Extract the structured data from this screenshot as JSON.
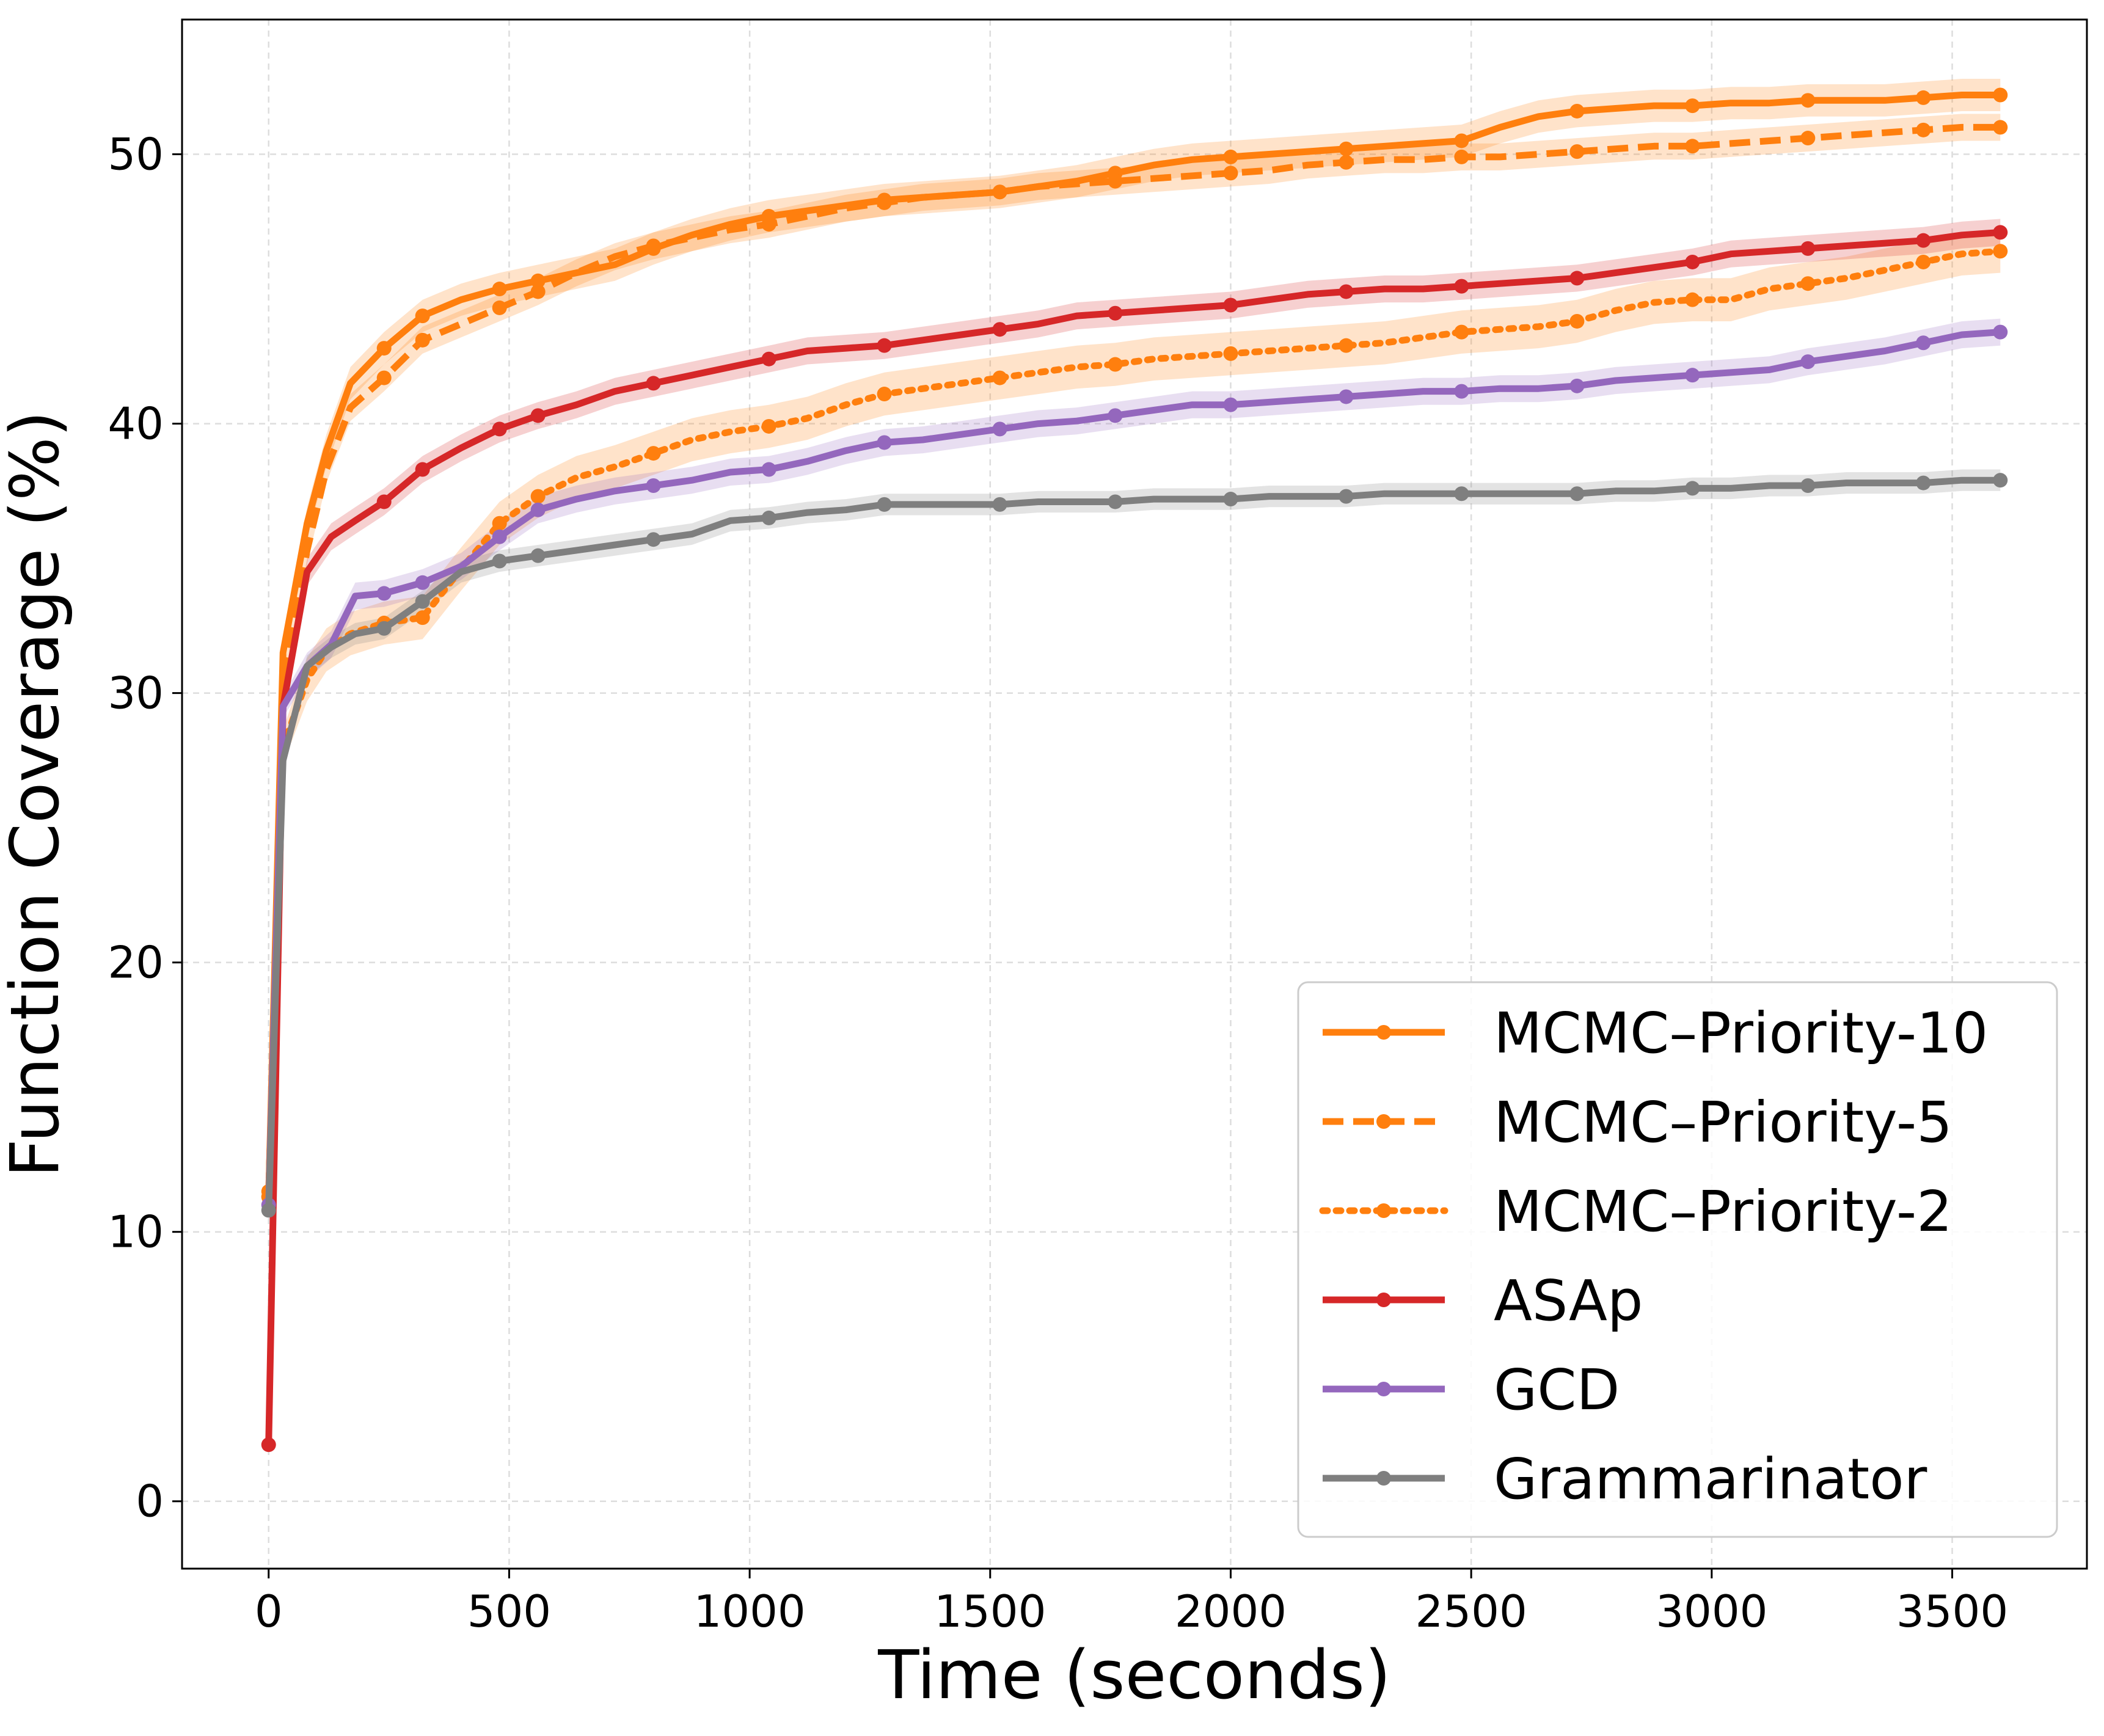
{
  "chart_data": {
    "type": "line",
    "title": "",
    "xlabel": "Time (seconds)",
    "ylabel": "Function Coverage (%)",
    "xlim": [
      -180,
      3780
    ],
    "ylim": [
      -2.5,
      55
    ],
    "xticks": [
      0,
      500,
      1000,
      1500,
      2000,
      2500,
      3000,
      3500
    ],
    "yticks": [
      0,
      10,
      20,
      30,
      40,
      50
    ],
    "grid": true,
    "legend_position": "lower-right",
    "series": [
      {
        "name": "MCMC–Priority-10",
        "color": "#ff7f0e",
        "style": "solid",
        "band": 0.6,
        "x": [
          0,
          30,
          80,
          120,
          170,
          240,
          320,
          400,
          480,
          560,
          640,
          720,
          800,
          880,
          960,
          1040,
          1120,
          1200,
          1280,
          1360,
          1440,
          1520,
          1600,
          1680,
          1760,
          1840,
          1920,
          2000,
          2080,
          2160,
          2240,
          2320,
          2400,
          2480,
          2560,
          2640,
          2720,
          2800,
          2880,
          2960,
          3040,
          3120,
          3200,
          3280,
          3360,
          3440,
          3520,
          3600
        ],
        "y": [
          11.3,
          31.5,
          36.3,
          39.0,
          41.5,
          42.8,
          44.0,
          44.6,
          45.0,
          45.3,
          45.6,
          45.9,
          46.5,
          47.0,
          47.4,
          47.7,
          47.9,
          48.1,
          48.3,
          48.4,
          48.5,
          48.6,
          48.8,
          49.0,
          49.3,
          49.6,
          49.8,
          49.9,
          50.0,
          50.1,
          50.2,
          50.3,
          50.4,
          50.5,
          51.0,
          51.4,
          51.6,
          51.7,
          51.8,
          51.8,
          51.9,
          51.9,
          52.0,
          52.0,
          52.0,
          52.1,
          52.2,
          52.2
        ]
      },
      {
        "name": "MCMC–Priority-5",
        "color": "#ff7f0e",
        "style": "dashed",
        "band": 0.5,
        "x": [
          0,
          30,
          80,
          120,
          170,
          240,
          320,
          400,
          480,
          560,
          640,
          720,
          800,
          880,
          960,
          1040,
          1120,
          1200,
          1280,
          1360,
          1440,
          1520,
          1600,
          1680,
          1760,
          1840,
          1920,
          2000,
          2080,
          2160,
          2240,
          2320,
          2400,
          2480,
          2560,
          2640,
          2720,
          2800,
          2880,
          2960,
          3040,
          3120,
          3200,
          3280,
          3360,
          3440,
          3520,
          3600
        ],
        "y": [
          11.3,
          30.3,
          35.3,
          38.3,
          40.6,
          41.7,
          43.1,
          43.7,
          44.3,
          44.9,
          45.6,
          46.2,
          46.6,
          46.9,
          47.2,
          47.4,
          47.7,
          48.0,
          48.2,
          48.4,
          48.5,
          48.6,
          48.8,
          48.9,
          49.0,
          49.1,
          49.2,
          49.3,
          49.4,
          49.6,
          49.7,
          49.8,
          49.8,
          49.9,
          49.9,
          50.0,
          50.1,
          50.2,
          50.3,
          50.3,
          50.4,
          50.5,
          50.6,
          50.7,
          50.8,
          50.9,
          51.0,
          51.0
        ]
      },
      {
        "name": "MCMC–Priority-2",
        "color": "#ff7f0e",
        "style": "dotted",
        "band": 0.8,
        "x": [
          0,
          30,
          80,
          120,
          170,
          240,
          320,
          400,
          480,
          560,
          640,
          720,
          800,
          880,
          960,
          1040,
          1120,
          1200,
          1280,
          1360,
          1440,
          1520,
          1600,
          1680,
          1760,
          1840,
          1920,
          2000,
          2080,
          2160,
          2240,
          2320,
          2400,
          2480,
          2560,
          2640,
          2720,
          2800,
          2880,
          2960,
          3040,
          3120,
          3200,
          3280,
          3360,
          3440,
          3520,
          3600
        ],
        "y": [
          11.5,
          28.0,
          30.5,
          31.6,
          32.2,
          32.6,
          32.8,
          34.6,
          36.3,
          37.3,
          38.0,
          38.4,
          38.9,
          39.4,
          39.7,
          39.9,
          40.2,
          40.7,
          41.1,
          41.3,
          41.5,
          41.7,
          41.9,
          42.1,
          42.2,
          42.4,
          42.5,
          42.6,
          42.7,
          42.8,
          42.9,
          43.0,
          43.2,
          43.4,
          43.5,
          43.6,
          43.8,
          44.2,
          44.5,
          44.6,
          44.6,
          45.0,
          45.2,
          45.4,
          45.7,
          46.0,
          46.3,
          46.4
        ]
      },
      {
        "name": "ASAp",
        "color": "#d62728",
        "style": "solid",
        "band": 0.5,
        "x": [
          0,
          30,
          80,
          130,
          180,
          240,
          320,
          400,
          480,
          560,
          640,
          720,
          800,
          880,
          960,
          1040,
          1120,
          1200,
          1280,
          1360,
          1440,
          1520,
          1600,
          1680,
          1760,
          1840,
          1920,
          2000,
          2080,
          2160,
          2240,
          2320,
          2400,
          2480,
          2560,
          2640,
          2720,
          2800,
          2880,
          2960,
          3040,
          3120,
          3200,
          3280,
          3360,
          3440,
          3520,
          3600
        ],
        "y": [
          2.1,
          29.5,
          34.5,
          35.8,
          36.4,
          37.1,
          38.3,
          39.1,
          39.8,
          40.3,
          40.7,
          41.2,
          41.5,
          41.8,
          42.1,
          42.4,
          42.7,
          42.8,
          42.9,
          43.1,
          43.3,
          43.5,
          43.7,
          44.0,
          44.1,
          44.2,
          44.3,
          44.4,
          44.6,
          44.8,
          44.9,
          45.0,
          45.0,
          45.1,
          45.2,
          45.3,
          45.4,
          45.6,
          45.8,
          46.0,
          46.3,
          46.4,
          46.5,
          46.6,
          46.7,
          46.8,
          47.0,
          47.1
        ]
      },
      {
        "name": "GCD",
        "color": "#9467bd",
        "style": "solid",
        "band": 0.5,
        "x": [
          0,
          30,
          80,
          130,
          180,
          240,
          320,
          400,
          480,
          560,
          640,
          720,
          800,
          880,
          960,
          1040,
          1120,
          1200,
          1280,
          1360,
          1440,
          1520,
          1600,
          1680,
          1760,
          1840,
          1920,
          2000,
          2080,
          2160,
          2240,
          2320,
          2400,
          2480,
          2560,
          2640,
          2720,
          2800,
          2880,
          2960,
          3040,
          3120,
          3200,
          3280,
          3360,
          3440,
          3520,
          3600
        ],
        "y": [
          11.0,
          29.5,
          31.0,
          31.8,
          33.6,
          33.7,
          34.1,
          34.7,
          35.8,
          36.8,
          37.2,
          37.5,
          37.7,
          37.9,
          38.2,
          38.3,
          38.6,
          39.0,
          39.3,
          39.4,
          39.6,
          39.8,
          40.0,
          40.1,
          40.3,
          40.5,
          40.7,
          40.7,
          40.8,
          40.9,
          41.0,
          41.1,
          41.2,
          41.2,
          41.3,
          41.3,
          41.4,
          41.6,
          41.7,
          41.8,
          41.9,
          42.0,
          42.3,
          42.5,
          42.7,
          43.0,
          43.3,
          43.4
        ]
      },
      {
        "name": "Grammarinator",
        "color": "#7f7f7f",
        "style": "solid",
        "band": 0.4,
        "x": [
          0,
          30,
          80,
          130,
          180,
          240,
          320,
          400,
          480,
          560,
          640,
          720,
          800,
          880,
          960,
          1040,
          1120,
          1200,
          1280,
          1360,
          1440,
          1520,
          1600,
          1680,
          1760,
          1840,
          1920,
          2000,
          2080,
          2160,
          2240,
          2320,
          2400,
          2480,
          2560,
          2640,
          2720,
          2800,
          2880,
          2960,
          3040,
          3120,
          3200,
          3280,
          3360,
          3440,
          3520,
          3600
        ],
        "y": [
          10.8,
          27.5,
          31.0,
          31.7,
          32.2,
          32.4,
          33.4,
          34.5,
          34.9,
          35.1,
          35.3,
          35.5,
          35.7,
          35.9,
          36.4,
          36.5,
          36.7,
          36.8,
          37.0,
          37.0,
          37.0,
          37.0,
          37.1,
          37.1,
          37.1,
          37.2,
          37.2,
          37.2,
          37.3,
          37.3,
          37.3,
          37.4,
          37.4,
          37.4,
          37.4,
          37.4,
          37.4,
          37.5,
          37.5,
          37.6,
          37.6,
          37.7,
          37.7,
          37.8,
          37.8,
          37.8,
          37.9,
          37.9
        ]
      }
    ]
  }
}
